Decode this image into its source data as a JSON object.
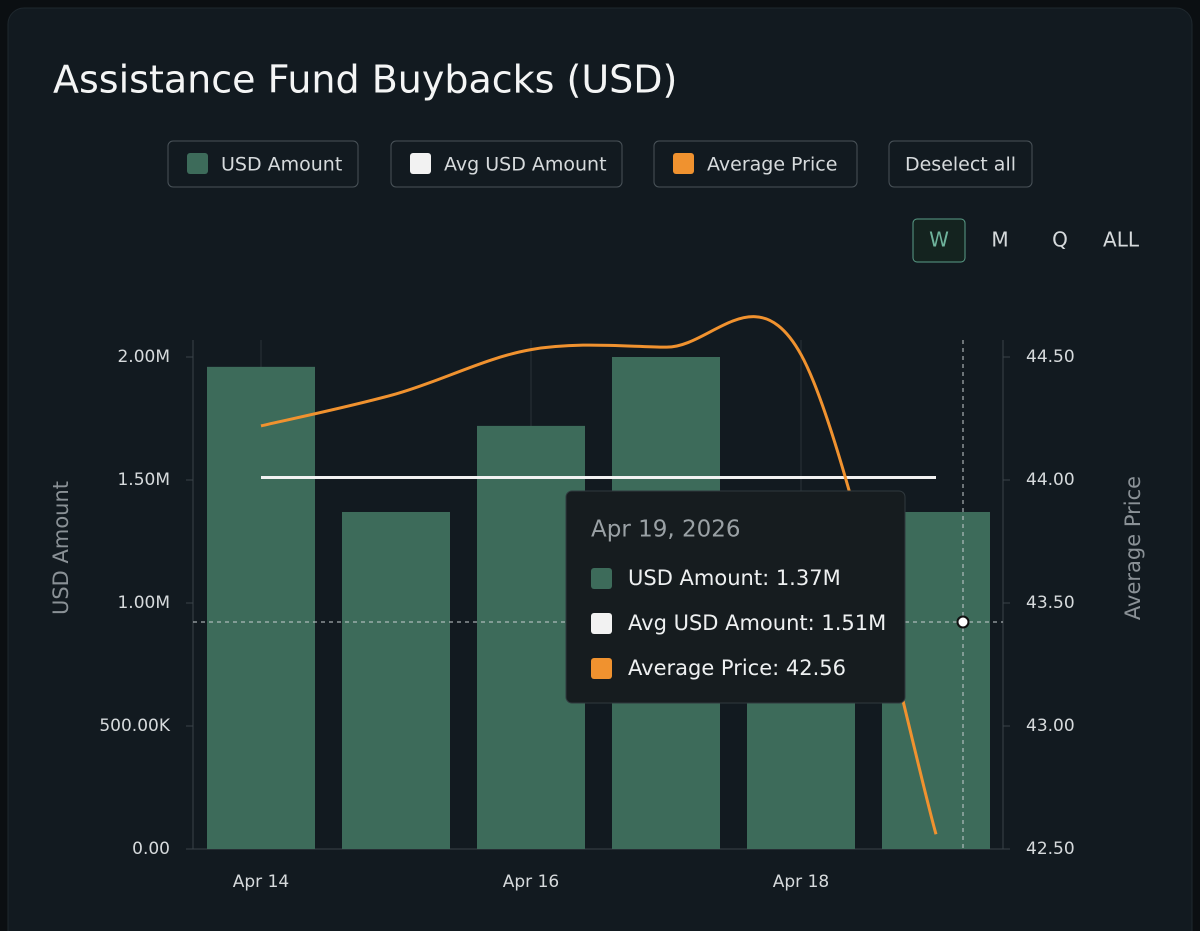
{
  "chart_data": {
    "type": "bar",
    "title": "Assistance Fund Buybacks (USD)",
    "categories": [
      "Apr 14",
      null,
      "Apr 16",
      null,
      "Apr 18",
      null
    ],
    "series": [
      {
        "name": "USD Amount",
        "color": "#3d6b5a",
        "values": [
          1960000,
          1370000,
          1720000,
          2000000,
          640000,
          1370000
        ]
      },
      {
        "name": "Avg USD Amount",
        "color": "#f2f2f2",
        "type": "line",
        "values": [
          1510000,
          1510000,
          1510000,
          1510000,
          1510000,
          1510000
        ]
      },
      {
        "name": "Average Price",
        "color": "#f0922f",
        "type": "line",
        "axis": "y2",
        "values": [
          44.22,
          44.35,
          44.53,
          44.54,
          44.51,
          42.56
        ]
      }
    ],
    "ylabel": "USD Amount",
    "y2label": "Average Price",
    "ylim": [
      0,
      2000000
    ],
    "yticks": [
      {
        "value": 0,
        "label": "0.00"
      },
      {
        "value": 500000,
        "label": "500.00K"
      },
      {
        "value": 1000000,
        "label": "1.00M"
      },
      {
        "value": 1500000,
        "label": "1.50M"
      },
      {
        "value": 2000000,
        "label": "2.00M"
      }
    ],
    "y2lim": [
      42.5,
      44.5
    ],
    "y2ticks": [
      {
        "value": 42.5,
        "label": "42.50"
      },
      {
        "value": 43,
        "label": "43.00"
      },
      {
        "value": 43.5,
        "label": "43.50"
      },
      {
        "value": 44,
        "label": "44.00"
      },
      {
        "value": 44.5,
        "label": "44.50"
      }
    ]
  },
  "controls": {
    "deselect": "Deselect all",
    "periods": [
      "W",
      "M",
      "Q",
      "ALL"
    ]
  },
  "tooltip": {
    "date": "Apr 19, 2026",
    "items": [
      "USD Amount: 1.37M",
      "Avg USD Amount: 1.51M",
      "Average Price: 42.56"
    ]
  }
}
